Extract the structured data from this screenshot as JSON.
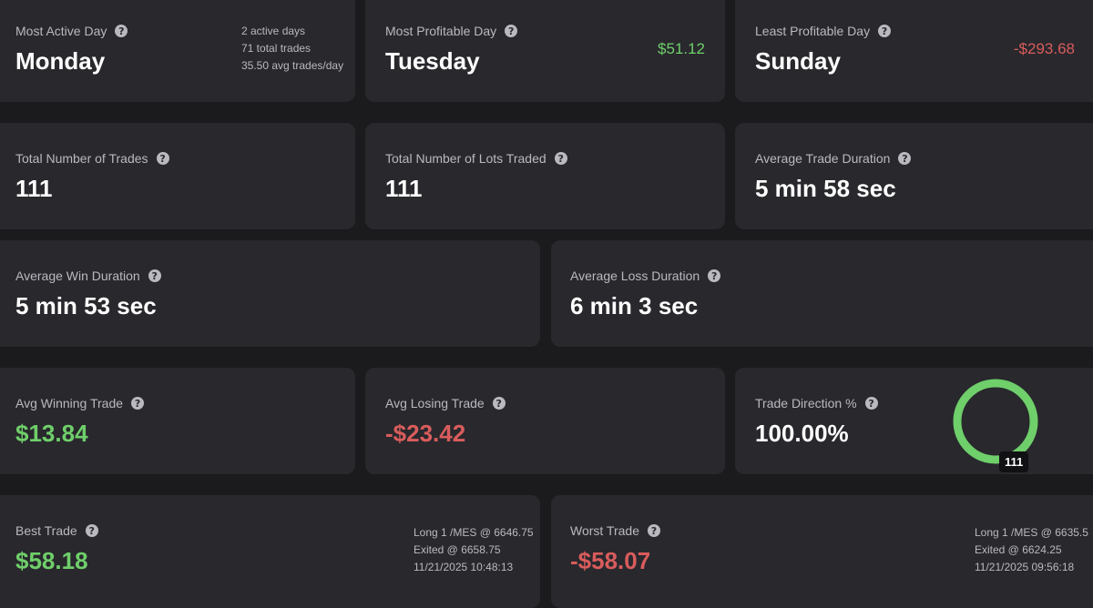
{
  "most_active_day": {
    "label": "Most Active Day",
    "value": "Monday",
    "line1": "2 active days",
    "line2": "71 total trades",
    "line3": "35.50 avg trades/day"
  },
  "most_profitable_day": {
    "label": "Most Profitable Day",
    "value": "Tuesday",
    "amount": "$51.12"
  },
  "least_profitable_day": {
    "label": "Least Profitable Day",
    "value": "Sunday",
    "amount": "-$293.68"
  },
  "total_trades": {
    "label": "Total Number of Trades",
    "value": "111"
  },
  "total_lots": {
    "label": "Total Number of Lots Traded",
    "value": "111"
  },
  "avg_trade_duration": {
    "label": "Average Trade Duration",
    "value": "5 min 58 sec"
  },
  "avg_win_duration": {
    "label": "Average Win Duration",
    "value": "5 min 53 sec"
  },
  "avg_loss_duration": {
    "label": "Average Loss Duration",
    "value": "6 min 3 sec"
  },
  "avg_winning_trade": {
    "label": "Avg Winning Trade",
    "value": "$13.84"
  },
  "avg_losing_trade": {
    "label": "Avg Losing Trade",
    "value": "-$23.42"
  },
  "trade_direction": {
    "label": "Trade Direction %",
    "value": "100.00%",
    "ring_count": "111",
    "long_fraction": 1.0,
    "ring_color": "#6fcf6a"
  },
  "best_trade": {
    "label": "Best Trade",
    "value": "$58.18",
    "line1": "Long 1 /MES @ 6646.75",
    "line2": "Exited @ 6658.75",
    "line3": "11/21/2025 10:48:13"
  },
  "worst_trade": {
    "label": "Worst Trade",
    "value": "-$58.07",
    "line1": "Long 1 /MES @ 6635.5",
    "line2": "Exited @ 6624.25",
    "line3": "11/21/2025 09:56:18"
  },
  "help_icon": "?"
}
